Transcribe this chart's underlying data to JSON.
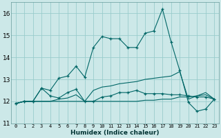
{
  "background_color": "#cce8e8",
  "grid_color": "#99cccc",
  "line_color": "#006666",
  "xlabel": "Humidex (Indice chaleur)",
  "ylim": [
    11,
    16.5
  ],
  "xlim": [
    -0.5,
    23.5
  ],
  "yticks": [
    11,
    12,
    13,
    14,
    15,
    16
  ],
  "xticks": [
    0,
    1,
    2,
    3,
    4,
    5,
    6,
    7,
    8,
    9,
    10,
    11,
    12,
    13,
    14,
    15,
    16,
    17,
    18,
    19,
    20,
    21,
    22,
    23
  ],
  "line1_x": [
    0,
    1,
    2,
    3,
    4,
    5,
    6,
    7,
    8,
    9,
    10,
    11,
    12,
    13,
    14,
    15,
    16,
    17,
    18,
    19,
    20,
    21,
    22,
    23
  ],
  "line1_y": [
    11.9,
    12.0,
    12.0,
    12.6,
    12.5,
    13.05,
    13.15,
    13.6,
    13.1,
    14.45,
    14.95,
    14.85,
    14.85,
    14.45,
    14.45,
    15.1,
    15.2,
    16.2,
    14.7,
    13.4,
    11.95,
    11.55,
    11.65,
    12.1
  ],
  "line2_x": [
    0,
    1,
    2,
    3,
    4,
    5,
    6,
    7,
    8,
    9,
    10,
    11,
    12,
    13,
    14,
    15,
    16,
    17,
    18,
    19,
    20,
    21,
    22,
    23
  ],
  "line2_y": [
    11.9,
    12.0,
    12.0,
    12.6,
    12.25,
    12.15,
    12.4,
    12.55,
    12.0,
    12.0,
    12.2,
    12.25,
    12.4,
    12.4,
    12.5,
    12.35,
    12.35,
    12.35,
    12.3,
    12.3,
    12.25,
    12.2,
    12.2,
    12.1
  ],
  "line3_x": [
    0,
    1,
    2,
    3,
    4,
    5,
    6,
    7,
    8,
    9,
    10,
    11,
    12,
    13,
    14,
    15,
    16,
    17,
    18,
    19,
    20,
    21,
    22,
    23
  ],
  "line3_y": [
    11.9,
    12.0,
    12.0,
    12.0,
    12.0,
    12.0,
    12.0,
    12.0,
    12.0,
    12.0,
    12.0,
    12.0,
    12.0,
    12.0,
    12.0,
    12.05,
    12.05,
    12.1,
    12.1,
    12.2,
    12.2,
    12.25,
    12.3,
    12.1
  ],
  "line4_x": [
    0,
    1,
    2,
    3,
    4,
    5,
    6,
    7,
    8,
    9,
    10,
    11,
    12,
    13,
    14,
    15,
    16,
    17,
    18,
    19,
    20,
    21,
    22,
    23
  ],
  "line4_y": [
    11.9,
    12.0,
    12.0,
    12.0,
    12.0,
    12.1,
    12.15,
    12.3,
    12.0,
    12.5,
    12.65,
    12.7,
    12.8,
    12.85,
    12.9,
    13.0,
    13.05,
    13.1,
    13.15,
    13.35,
    12.1,
    12.25,
    12.4,
    12.1
  ]
}
